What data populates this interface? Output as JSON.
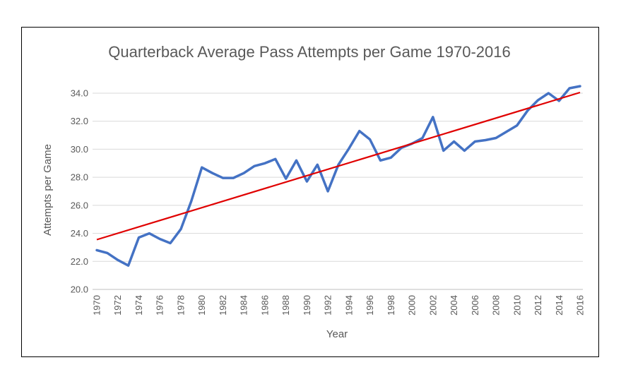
{
  "chart_data": {
    "type": "line",
    "title": "Quarterback Average Pass Attempts per Game 1970-2016",
    "xlabel": "Year",
    "ylabel": "Attempts per Game",
    "ylim": [
      20,
      35
    ],
    "yticks": [
      "20.0",
      "22.0",
      "24.0",
      "26.0",
      "28.0",
      "30.0",
      "32.0",
      "34.0"
    ],
    "xticks": [
      "1970",
      "1972",
      "1974",
      "1976",
      "1978",
      "1980",
      "1982",
      "1984",
      "1986",
      "1988",
      "1990",
      "1992",
      "1994",
      "1996",
      "1998",
      "2000",
      "2002",
      "2004",
      "2006",
      "2008",
      "2010",
      "2012",
      "2014",
      "2016"
    ],
    "grid": true,
    "legend": "none",
    "x": [
      1970,
      1971,
      1972,
      1973,
      1974,
      1975,
      1976,
      1977,
      1978,
      1979,
      1980,
      1981,
      1982,
      1983,
      1984,
      1985,
      1986,
      1987,
      1988,
      1989,
      1990,
      1991,
      1992,
      1993,
      1994,
      1995,
      1996,
      1997,
      1998,
      1999,
      2000,
      2001,
      2002,
      2003,
      2004,
      2005,
      2006,
      2007,
      2008,
      2009,
      2010,
      2011,
      2012,
      2013,
      2014,
      2015,
      2016
    ],
    "series": [
      {
        "color": "#4472c4",
        "values": [
          22.8,
          22.6,
          22.1,
          21.7,
          23.7,
          24.0,
          23.6,
          23.3,
          24.3,
          26.3,
          28.7,
          28.3,
          27.95,
          27.95,
          28.3,
          28.8,
          29.0,
          29.3,
          27.9,
          29.2,
          27.7,
          28.9,
          27.0,
          28.9,
          30.05,
          31.3,
          30.7,
          29.2,
          29.4,
          30.1,
          30.4,
          30.8,
          32.3,
          29.9,
          30.55,
          29.9,
          30.55,
          30.65,
          30.8,
          31.25,
          31.7,
          32.75,
          33.5,
          34.0,
          33.45,
          34.35,
          34.5
        ]
      },
      {
        "color": "#e00000",
        "trend": true,
        "values_at_ends": [
          23.55,
          34.05
        ]
      }
    ]
  }
}
